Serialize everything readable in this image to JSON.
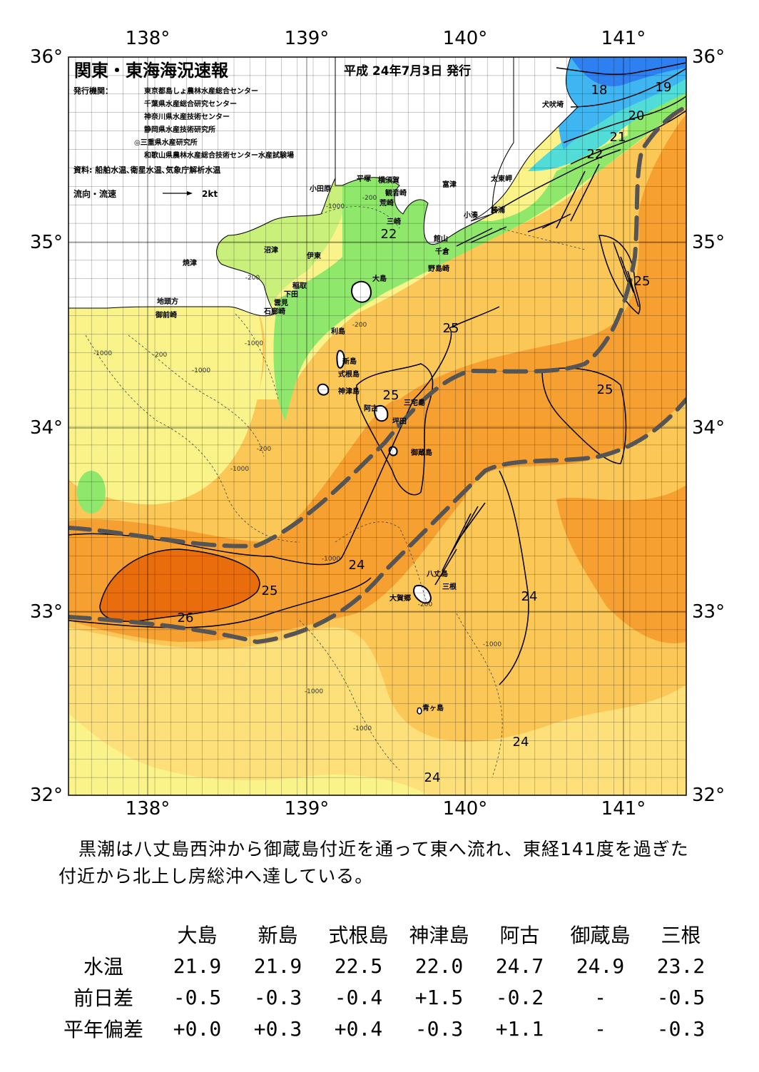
{
  "header": {
    "title": "関東・東海海況速報",
    "date": "平成 24年7月3日 発行",
    "publisher_label": "発行機関：",
    "publishers": [
      "東京都島しょ農林水産総合センター",
      "千葉県水産総合研究センター",
      "神奈川県水産技術センター",
      "静岡県水産技術研究所",
      "◎三重県水産研究所",
      "和歌山県農林水産総合技術センター水産試験場"
    ],
    "source": "資料: 船舶水温､衛星水温､気象庁解析水温",
    "legend_label": "流向・流速",
    "legend_speed": "2kt"
  },
  "map": {
    "lon_ticks": [
      "138°",
      "139°",
      "140°",
      "141°"
    ],
    "lat_ticks": [
      "36°",
      "35°",
      "34°",
      "33°",
      "32°"
    ],
    "place_names": [
      "犬吠埼",
      "太東岬",
      "勝浦",
      "小湊",
      "富津",
      "横須賀",
      "観音崎",
      "平塚",
      "小田原",
      "荒崎",
      "三崎",
      "館山",
      "千倉",
      "野島崎",
      "大島",
      "沼津",
      "伊東",
      "焼津",
      "稲取",
      "下田",
      "雲見",
      "石廊崎",
      "地頭方",
      "御前崎",
      "利島",
      "新島",
      "式根島",
      "神津島",
      "三宅島",
      "阿古",
      "坪田",
      "御蔵島",
      "八丈島",
      "三根",
      "大賀郷",
      "青ヶ島"
    ],
    "isotherm_labels": [
      "18",
      "19",
      "20",
      "21",
      "22",
      "22",
      "25",
      "25",
      "25",
      "25",
      "24",
      "25",
      "26",
      "24",
      "24",
      "24"
    ],
    "depth_labels": [
      "-200",
      "-1000",
      "-200",
      "-200",
      "-1000",
      "-200",
      "-1000",
      "-1000",
      "-200",
      "-1000",
      "-1000",
      "-200",
      "-1000",
      "-1000",
      "-1000"
    ],
    "colors": {
      "kuroshio_axis": "#555555",
      "temp_26": "#e96d0c",
      "temp_25": "#f7a032",
      "temp_24": "#fbc757",
      "temp_23": "#fde07a",
      "temp_22": "#f9f38a",
      "temp_21": "#c9f07a",
      "temp_20": "#8fe86c",
      "temp_19": "#52dcd8",
      "temp_18": "#3fb6f2",
      "temp_17": "#2e7ff0"
    }
  },
  "summary": "黒潮は八丈島西沖から御蔵島付近を通って東へ流れ、東経141度を過ぎた付近から北上し房総沖へ達している。",
  "table": {
    "headers": [
      "大島",
      "新島",
      "式根島",
      "神津島",
      "阿古",
      "御蔵島",
      "三根"
    ],
    "rows": [
      {
        "label": "水温",
        "values": [
          "21.9",
          "21.9",
          "22.5",
          "22.0",
          "24.7",
          "24.9",
          "23.2"
        ]
      },
      {
        "label": "前日差",
        "values": [
          "-0.5",
          "-0.3",
          "-0.4",
          "+1.5",
          "-0.2",
          "-",
          "-0.5"
        ]
      },
      {
        "label": "平年偏差",
        "values": [
          "+0.0",
          "+0.3",
          "+0.4",
          "-0.3",
          "+1.1",
          "-",
          "-0.3"
        ]
      }
    ]
  }
}
